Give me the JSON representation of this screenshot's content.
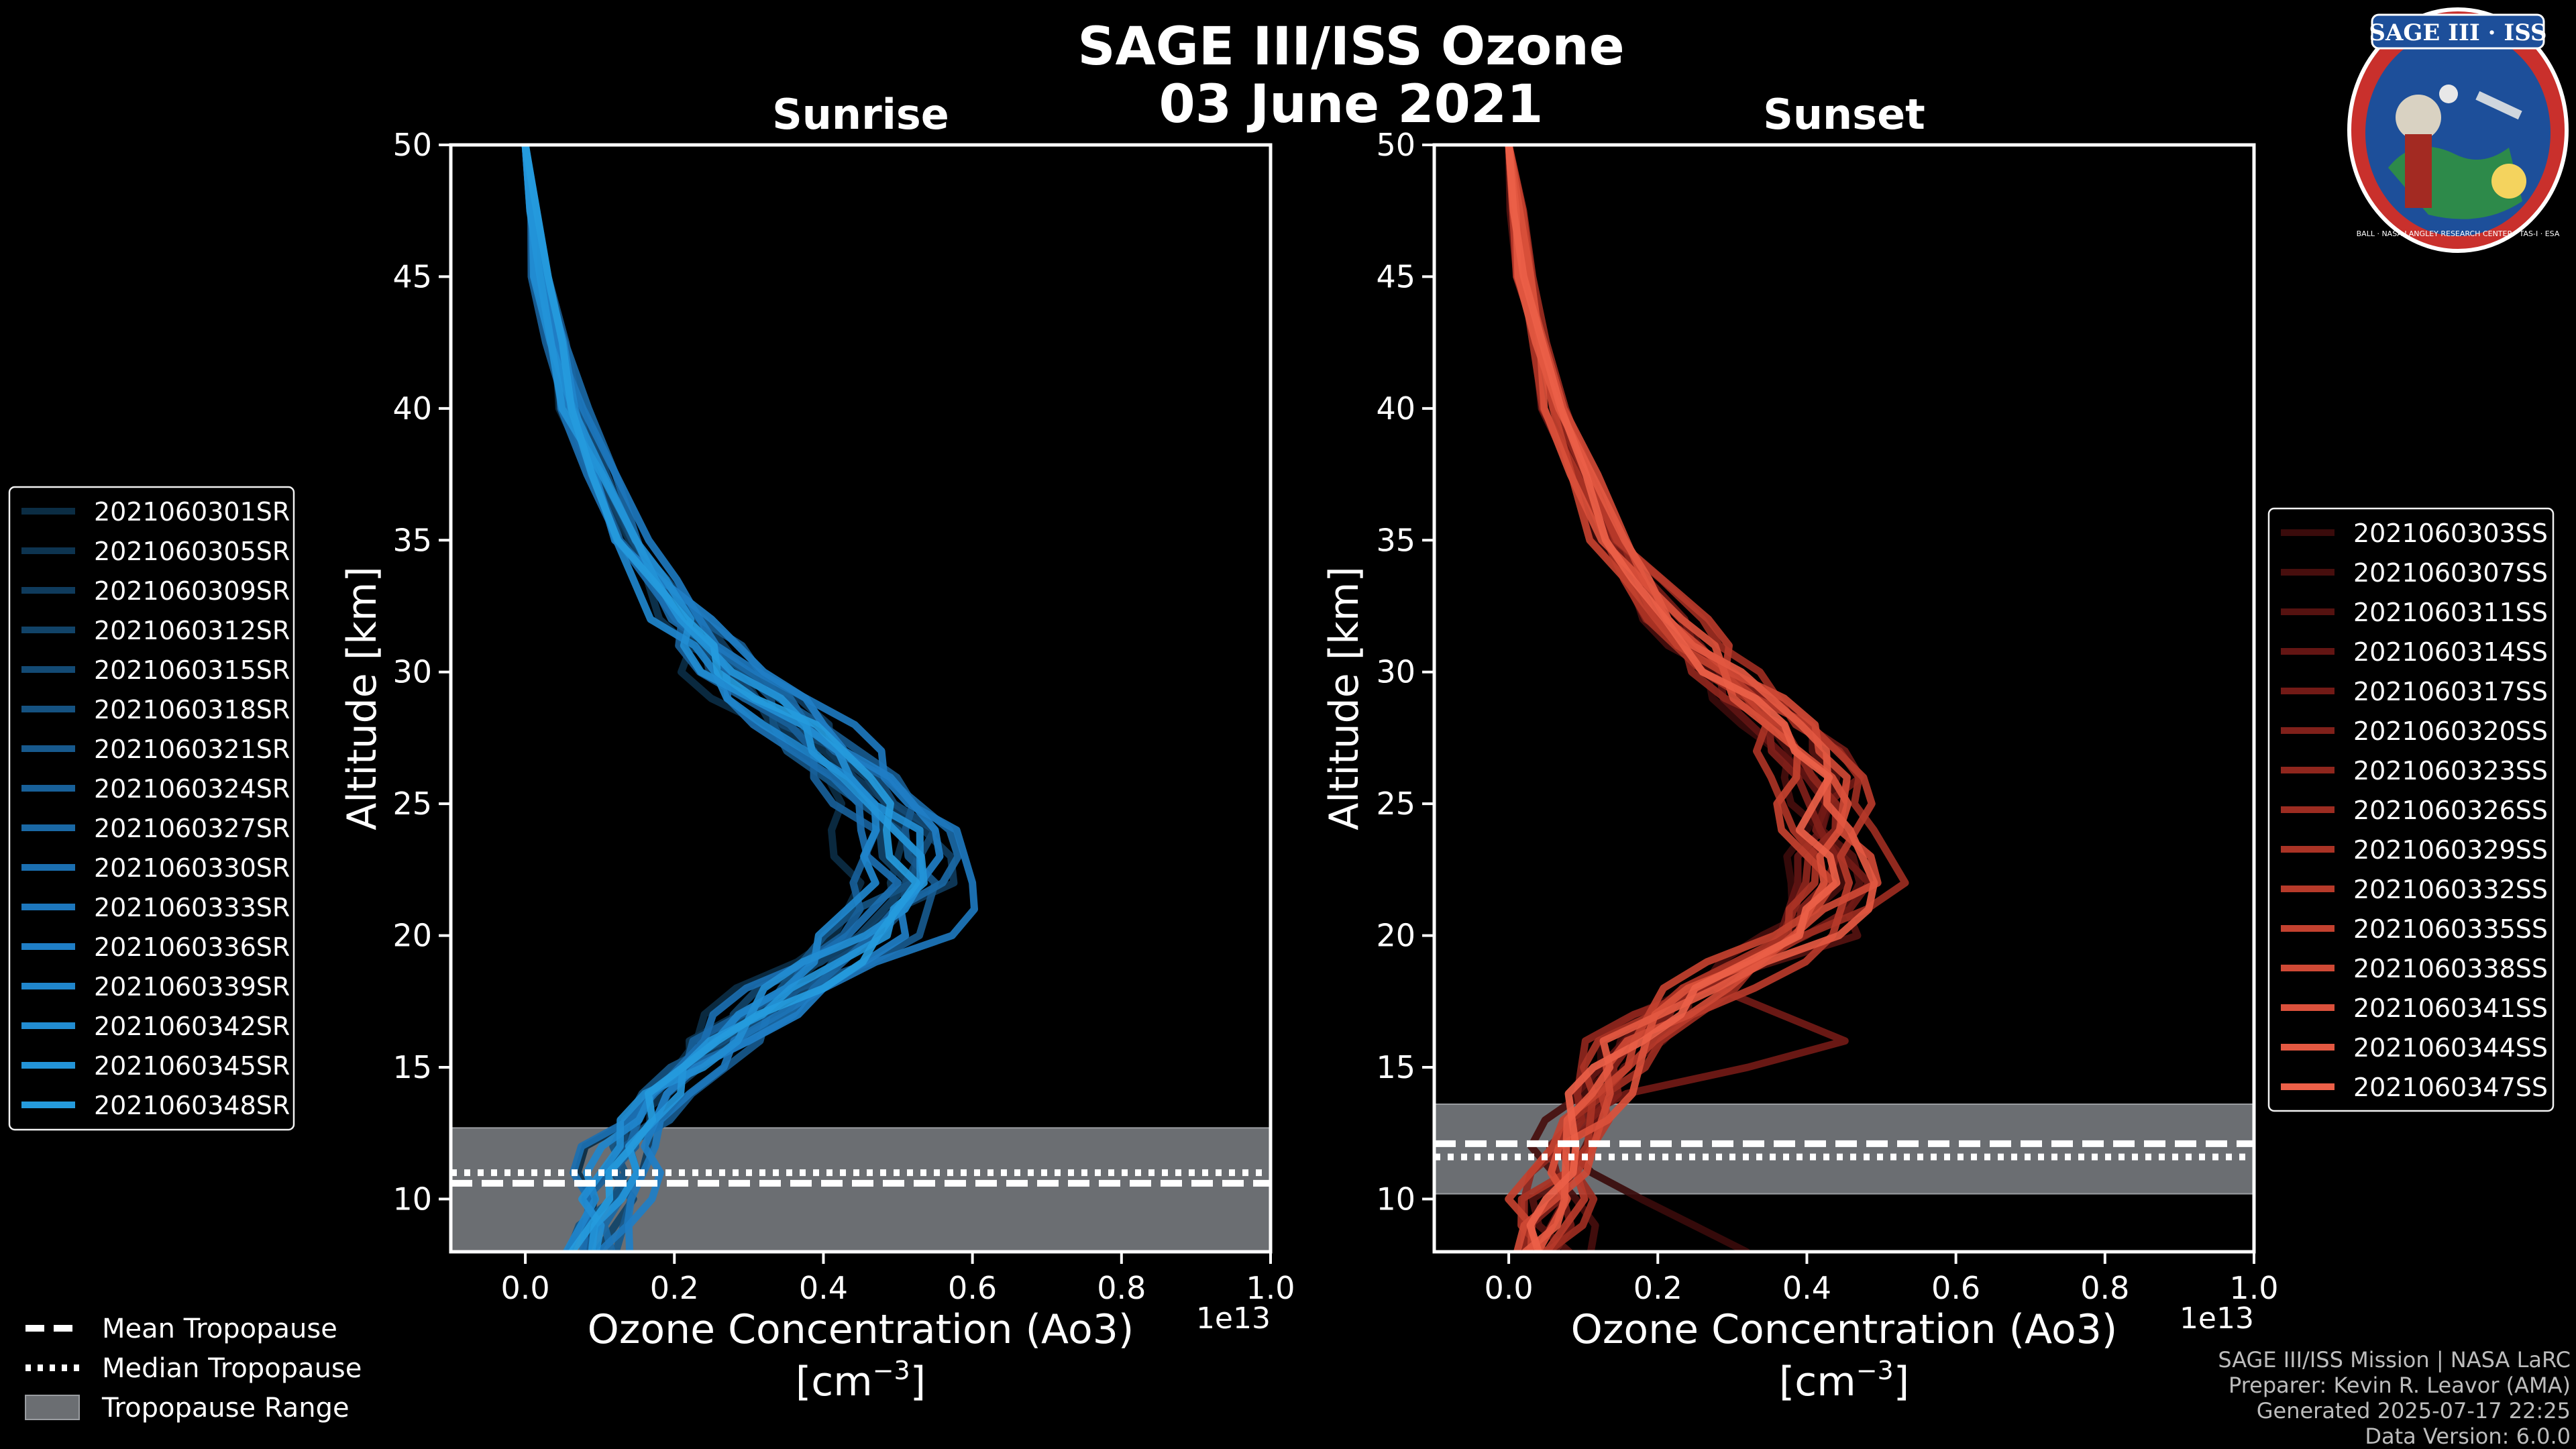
{
  "figure": {
    "title_line1": "SAGE III/ISS Ozone",
    "title_line2": "03 June 2021",
    "logo_text": "SAGE III · ISS",
    "logo_ring_text": "BALL · NASA LANGLEY RESEARCH CENTER · TAS-I · ESA",
    "credits": [
      "SAGE III/ISS Mission | NASA LaRC",
      "Preparer: Kevin R. Leavor (AMA)",
      "Generated 2025-07-17 22:25",
      "Data Version: 6.0.0"
    ],
    "tropopause_legend": [
      {
        "label": "Mean Tropopause",
        "style": "dashed"
      },
      {
        "label": "Median Tropopause",
        "style": "dotted"
      },
      {
        "label": "Tropopause Range",
        "style": "patch"
      }
    ],
    "colors": {
      "background": "#000000",
      "sunrise_base": "#1b9ad6",
      "sunset_base": "#e8574a",
      "tropo_fill": "#6b6e72"
    }
  },
  "chart_data": [
    {
      "type": "line",
      "title": "Sunrise",
      "xlabel": "Ozone Concentration (Ao3)",
      "xunit": "[cm",
      "xunit_exp": "−3",
      "xunit_close": "]",
      "offset_text": "1e13",
      "ylabel": "Altitude [km]",
      "xlim": [
        -0.1,
        1.0
      ],
      "ylim": [
        8,
        50
      ],
      "xticks": [
        0.0,
        0.2,
        0.4,
        0.6,
        0.8,
        1.0
      ],
      "xtick_labels": [
        "0.0",
        "0.2",
        "0.4",
        "0.6",
        "0.8",
        "1.0"
      ],
      "yticks": [
        10,
        15,
        20,
        25,
        30,
        35,
        40,
        45,
        50
      ],
      "ytick_labels": [
        "10",
        "15",
        "20",
        "25",
        "30",
        "35",
        "40",
        "45",
        "50"
      ],
      "tropopause": {
        "mean": 10.6,
        "median": 11.0,
        "range": [
          8,
          12.7
        ]
      },
      "legend_labels": [
        "2021060301SR",
        "2021060305SR",
        "2021060309SR",
        "2021060312SR",
        "2021060315SR",
        "2021060318SR",
        "2021060321SR",
        "2021060324SR",
        "2021060327SR",
        "2021060330SR",
        "2021060333SR",
        "2021060336SR",
        "2021060339SR",
        "2021060342SR",
        "2021060345SR",
        "2021060348SR"
      ],
      "series_colors": [
        "#0b2d44",
        "#0d3450",
        "#0f3b5c",
        "#114368",
        "#134a74",
        "#155281",
        "#17598d",
        "#186099",
        "#1a68a5",
        "#1b6fb1",
        "#1d77bd",
        "#1f7ec6",
        "#2086cc",
        "#228dd2",
        "#2394d8",
        "#259bdd"
      ],
      "profile_template": {
        "alt": [
          50,
          45,
          40,
          35,
          32,
          30,
          28,
          26,
          24,
          22,
          20,
          18,
          16,
          14,
          12,
          10,
          8
        ],
        "o3": [
          0.0,
          0.02,
          0.06,
          0.13,
          0.2,
          0.26,
          0.35,
          0.43,
          0.49,
          0.5,
          0.44,
          0.34,
          0.25,
          0.17,
          0.12,
          0.1,
          0.08
        ]
      },
      "series_params": [
        {
          "scale": 0.92,
          "shift": -0.01,
          "jitter": [
            0.0,
            0.01,
            -0.01,
            0.02,
            0.03,
            -0.02,
            0.01,
            0.02,
            -0.03,
            0.0,
            0.02,
            -0.02,
            0.01,
            0.03,
            -0.02,
            0.01,
            0.02
          ]
        },
        {
          "scale": 1.0,
          "shift": 0.0,
          "jitter": [
            0.0,
            -0.01,
            0.0,
            0.01,
            -0.02,
            0.03,
            -0.02,
            0.01,
            0.02,
            -0.01,
            0.03,
            0.01,
            -0.03,
            0.02,
            0.01,
            -0.02,
            0.0
          ]
        },
        {
          "scale": 1.05,
          "shift": 0.01,
          "jitter": [
            0.0,
            0.0,
            0.01,
            -0.01,
            0.02,
            0.01,
            0.03,
            -0.02,
            0.01,
            0.04,
            -0.02,
            0.02,
            0.01,
            -0.02,
            0.03,
            0.0,
            -0.01
          ]
        },
        {
          "scale": 0.95,
          "shift": 0.02,
          "jitter": [
            0.0,
            0.01,
            0.0,
            0.02,
            -0.01,
            -0.02,
            0.02,
            0.03,
            -0.01,
            0.02,
            0.01,
            -0.03,
            0.02,
            0.01,
            -0.01,
            0.03,
            0.0
          ]
        },
        {
          "scale": 1.1,
          "shift": -0.02,
          "jitter": [
            0.0,
            -0.01,
            0.01,
            0.0,
            0.03,
            0.01,
            -0.02,
            0.02,
            0.03,
            -0.02,
            0.01,
            0.03,
            -0.02,
            0.0,
            0.02,
            -0.01,
            0.01
          ]
        },
        {
          "scale": 0.98,
          "shift": 0.0,
          "jitter": [
            0.0,
            0.0,
            -0.01,
            0.02,
            0.01,
            0.04,
            -0.01,
            -0.02,
            0.02,
            0.03,
            -0.03,
            0.01,
            0.02,
            -0.01,
            0.0,
            0.02,
            -0.02
          ]
        },
        {
          "scale": 1.02,
          "shift": 0.03,
          "jitter": [
            0.0,
            0.01,
            0.01,
            -0.01,
            0.0,
            0.02,
            0.01,
            0.03,
            -0.02,
            0.01,
            0.05,
            -0.01,
            0.03,
            0.02,
            -0.02,
            0.01,
            0.01
          ]
        },
        {
          "scale": 0.9,
          "shift": 0.01,
          "jitter": [
            0.0,
            -0.01,
            0.0,
            0.01,
            0.02,
            -0.01,
            0.03,
            -0.01,
            0.02,
            -0.02,
            0.02,
            0.04,
            -0.01,
            0.01,
            0.03,
            -0.02,
            0.0
          ]
        },
        {
          "scale": 1.08,
          "shift": 0.0,
          "jitter": [
            0.0,
            0.0,
            0.02,
            0.01,
            -0.02,
            0.02,
            0.0,
            0.02,
            0.04,
            0.02,
            -0.01,
            0.02,
            0.03,
            -0.02,
            0.01,
            0.02,
            0.03
          ]
        },
        {
          "scale": 0.96,
          "shift": -0.01,
          "jitter": [
            0.0,
            0.01,
            -0.01,
            0.0,
            0.02,
            0.03,
            -0.02,
            0.01,
            -0.01,
            0.03,
            0.02,
            -0.02,
            0.01,
            0.02,
            -0.03,
            0.0,
            0.01
          ]
        },
        {
          "scale": 1.12,
          "shift": 0.02,
          "jitter": [
            0.0,
            -0.01,
            0.01,
            0.02,
            -0.01,
            0.0,
            0.03,
            -0.02,
            0.01,
            0.02,
            0.06,
            0.0,
            -0.02,
            0.01,
            0.02,
            0.01,
            -0.01
          ]
        },
        {
          "scale": 1.0,
          "shift": 0.04,
          "jitter": [
            0.0,
            0.0,
            0.0,
            -0.01,
            0.01,
            0.02,
            0.01,
            0.02,
            0.02,
            -0.01,
            0.03,
            0.02,
            0.01,
            -0.02,
            0.0,
            0.03,
            0.02
          ]
        },
        {
          "scale": 0.94,
          "shift": 0.0,
          "jitter": [
            0.0,
            0.01,
            0.01,
            0.0,
            -0.02,
            0.01,
            -0.01,
            0.03,
            0.01,
            0.0,
            -0.02,
            0.03,
            0.02,
            0.01,
            -0.01,
            0.0,
            -0.02
          ]
        },
        {
          "scale": 1.06,
          "shift": -0.02,
          "jitter": [
            0.0,
            -0.01,
            0.0,
            0.01,
            0.03,
            -0.02,
            0.02,
            0.0,
            0.03,
            0.02,
            0.01,
            -0.02,
            0.04,
            0.0,
            0.02,
            -0.01,
            0.03
          ]
        },
        {
          "scale": 0.99,
          "shift": 0.01,
          "jitter": [
            0.0,
            0.0,
            -0.01,
            0.02,
            0.0,
            0.01,
            0.02,
            -0.01,
            0.0,
            0.03,
            0.04,
            0.01,
            -0.01,
            0.03,
            0.01,
            0.02,
            0.0
          ]
        },
        {
          "scale": 1.03,
          "shift": 0.0,
          "jitter": [
            0.0,
            0.01,
            0.0,
            -0.01,
            0.01,
            -0.01,
            0.03,
            0.02,
            -0.02,
            0.01,
            0.02,
            0.05,
            0.0,
            -0.01,
            0.02,
            0.01,
            -0.02
          ]
        }
      ]
    },
    {
      "type": "line",
      "title": "Sunset",
      "xlabel": "Ozone Concentration (Ao3)",
      "xunit": "[cm",
      "xunit_exp": "−3",
      "xunit_close": "]",
      "offset_text": "1e13",
      "ylabel": "Altitude [km]",
      "xlim": [
        -0.1,
        1.0
      ],
      "ylim": [
        8,
        50
      ],
      "xticks": [
        0.0,
        0.2,
        0.4,
        0.6,
        0.8,
        1.0
      ],
      "xtick_labels": [
        "0.0",
        "0.2",
        "0.4",
        "0.6",
        "0.8",
        "1.0"
      ],
      "yticks": [
        10,
        15,
        20,
        25,
        30,
        35,
        40,
        45,
        50
      ],
      "ytick_labels": [
        "10",
        "15",
        "20",
        "25",
        "30",
        "35",
        "40",
        "45",
        "50"
      ],
      "tropopause": {
        "mean": 12.1,
        "median": 11.6,
        "range": [
          10.2,
          13.6
        ]
      },
      "legend_labels": [
        "2021060303SS",
        "2021060307SS",
        "2021060311SS",
        "2021060314SS",
        "2021060317SS",
        "2021060320SS",
        "2021060323SS",
        "2021060326SS",
        "2021060329SS",
        "2021060332SS",
        "2021060335SS",
        "2021060338SS",
        "2021060341SS",
        "2021060344SS",
        "2021060347SS"
      ],
      "series_colors": [
        "#3a0b0b",
        "#470e0d",
        "#551210",
        "#631513",
        "#721a16",
        "#80201a",
        "#8f261d",
        "#9c2c21",
        "#aa3325",
        "#b73a2a",
        "#c3412f",
        "#cf4935",
        "#da503b",
        "#e35841",
        "#ec6048"
      ],
      "profile_template": {
        "alt": [
          50,
          45,
          40,
          35,
          32,
          30,
          28,
          26,
          24,
          22,
          20,
          18,
          16,
          14,
          12,
          10,
          8
        ],
        "o3": [
          0.0,
          0.02,
          0.06,
          0.13,
          0.2,
          0.27,
          0.35,
          0.4,
          0.4,
          0.42,
          0.36,
          0.24,
          0.14,
          0.1,
          0.06,
          0.04,
          0.02
        ]
      },
      "series_params": [
        {
          "scale": 0.95,
          "shift": 0.0,
          "jitter": [
            0.0,
            0.0,
            0.01,
            -0.01,
            0.02,
            0.01,
            -0.02,
            0.03,
            0.02,
            -0.02,
            0.04,
            0.02,
            -0.01,
            0.03,
            0.02,
            0.14,
            0.3
          ]
        },
        {
          "scale": 1.0,
          "shift": -0.01,
          "jitter": [
            0.0,
            0.01,
            0.0,
            0.01,
            -0.01,
            0.02,
            0.01,
            -0.02,
            0.03,
            0.04,
            -0.01,
            0.03,
            0.02,
            0.01,
            -0.02,
            0.06,
            0.1
          ]
        },
        {
          "scale": 1.05,
          "shift": 0.01,
          "jitter": [
            0.0,
            -0.01,
            0.01,
            0.0,
            0.01,
            -0.01,
            0.03,
            0.01,
            -0.01,
            0.02,
            0.08,
            -0.02,
            0.05,
            0.02,
            0.03,
            -0.02,
            0.05
          ]
        },
        {
          "scale": 0.9,
          "shift": 0.02,
          "jitter": [
            0.0,
            0.0,
            -0.01,
            0.02,
            0.0,
            0.02,
            -0.01,
            0.02,
            0.04,
            -0.01,
            0.02,
            0.03,
            0.01,
            -0.02,
            0.04,
            0.02,
            0.0
          ]
        },
        {
          "scale": 1.08,
          "shift": 0.0,
          "jitter": [
            0.0,
            0.01,
            0.0,
            -0.01,
            0.02,
            0.0,
            0.02,
            0.04,
            -0.02,
            0.03,
            0.01,
            0.02,
            0.3,
            0.05,
            -0.01,
            0.03,
            0.04
          ]
        },
        {
          "scale": 0.97,
          "shift": 0.01,
          "jitter": [
            0.0,
            0.0,
            0.01,
            0.01,
            -0.02,
            0.03,
            0.0,
            -0.01,
            0.02,
            0.01,
            0.03,
            -0.01,
            0.02,
            0.04,
            0.0,
            0.02,
            -0.01
          ]
        },
        {
          "scale": 1.02,
          "shift": -0.02,
          "jitter": [
            0.0,
            -0.01,
            0.0,
            0.02,
            0.01,
            -0.01,
            0.03,
            0.02,
            0.05,
            -0.01,
            0.02,
            0.04,
            -0.02,
            0.01,
            0.03,
            0.0,
            0.02
          ]
        },
        {
          "scale": 1.1,
          "shift": 0.02,
          "jitter": [
            0.0,
            0.01,
            0.01,
            0.0,
            0.02,
            0.02,
            -0.02,
            0.01,
            0.03,
            0.05,
            -0.02,
            0.02,
            0.03,
            0.0,
            -0.02,
            0.05,
            0.01
          ]
        },
        {
          "scale": 0.93,
          "shift": 0.0,
          "jitter": [
            0.0,
            0.0,
            -0.01,
            0.01,
            0.0,
            0.01,
            0.02,
            -0.02,
            0.01,
            0.02,
            0.04,
            0.01,
            -0.01,
            0.02,
            0.05,
            -0.02,
            0.03
          ]
        },
        {
          "scale": 1.04,
          "shift": 0.03,
          "jitter": [
            0.0,
            -0.01,
            0.01,
            0.01,
            0.03,
            -0.02,
            0.01,
            0.03,
            0.02,
            -0.01,
            0.03,
            0.05,
            0.02,
            -0.01,
            0.02,
            0.03,
            0.0
          ]
        },
        {
          "scale": 0.99,
          "shift": -0.01,
          "jitter": [
            0.0,
            0.01,
            0.0,
            -0.02,
            0.01,
            0.03,
            0.02,
            0.0,
            -0.02,
            0.03,
            0.01,
            -0.02,
            0.04,
            0.03,
            0.01,
            -0.03,
            0.02
          ]
        },
        {
          "scale": 1.06,
          "shift": 0.01,
          "jitter": [
            0.0,
            0.0,
            0.01,
            0.02,
            -0.01,
            0.0,
            0.03,
            0.02,
            0.01,
            0.04,
            -0.01,
            0.03,
            0.0,
            0.02,
            0.04,
            0.01,
            -0.02
          ]
        },
        {
          "scale": 0.96,
          "shift": 0.02,
          "jitter": [
            0.0,
            0.01,
            -0.01,
            0.0,
            0.02,
            0.01,
            -0.01,
            0.03,
            0.04,
            0.0,
            0.02,
            -0.01,
            0.03,
            0.05,
            -0.01,
            0.02,
            0.0
          ]
        },
        {
          "scale": 1.12,
          "shift": -0.01,
          "jitter": [
            0.0,
            -0.01,
            0.0,
            0.01,
            0.0,
            0.02,
            0.01,
            -0.01,
            0.02,
            0.03,
            0.05,
            0.02,
            -0.02,
            0.01,
            0.02,
            0.04,
            0.01
          ]
        },
        {
          "scale": 1.0,
          "shift": 0.0,
          "jitter": [
            0.0,
            0.0,
            0.01,
            0.0,
            0.01,
            -0.01,
            0.02,
            0.03,
            -0.01,
            0.02,
            0.03,
            0.01,
            0.04,
            -0.02,
            0.03,
            0.01,
            0.02
          ]
        }
      ]
    }
  ]
}
